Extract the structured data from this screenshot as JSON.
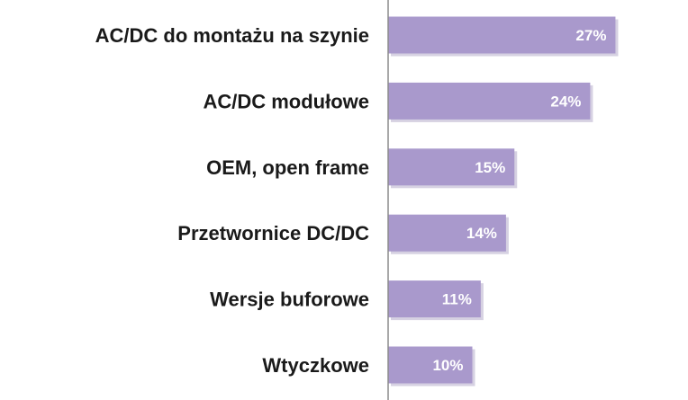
{
  "chart_data": {
    "type": "bar",
    "orientation": "horizontal",
    "categories": [
      "AC/DC do montażu na szynie",
      "AC/DC modułowe",
      "OEM, open frame",
      "Przetwornice DC/DC",
      "Wersje buforowe",
      "Wtyczkowe"
    ],
    "values": [
      27,
      24,
      15,
      14,
      11,
      10
    ],
    "data_labels": [
      "27%",
      "24%",
      "15%",
      "14%",
      "11%",
      "10%"
    ],
    "unit": "%",
    "xlim": [
      0,
      35
    ],
    "grid": false,
    "legend": "none",
    "colors": {
      "bar": "#a999cc",
      "bar_shadow": "#d6d1e2",
      "axis": "#8c8c8c",
      "label_text": "#1a1a1a",
      "value_text": "#ffffff"
    }
  }
}
